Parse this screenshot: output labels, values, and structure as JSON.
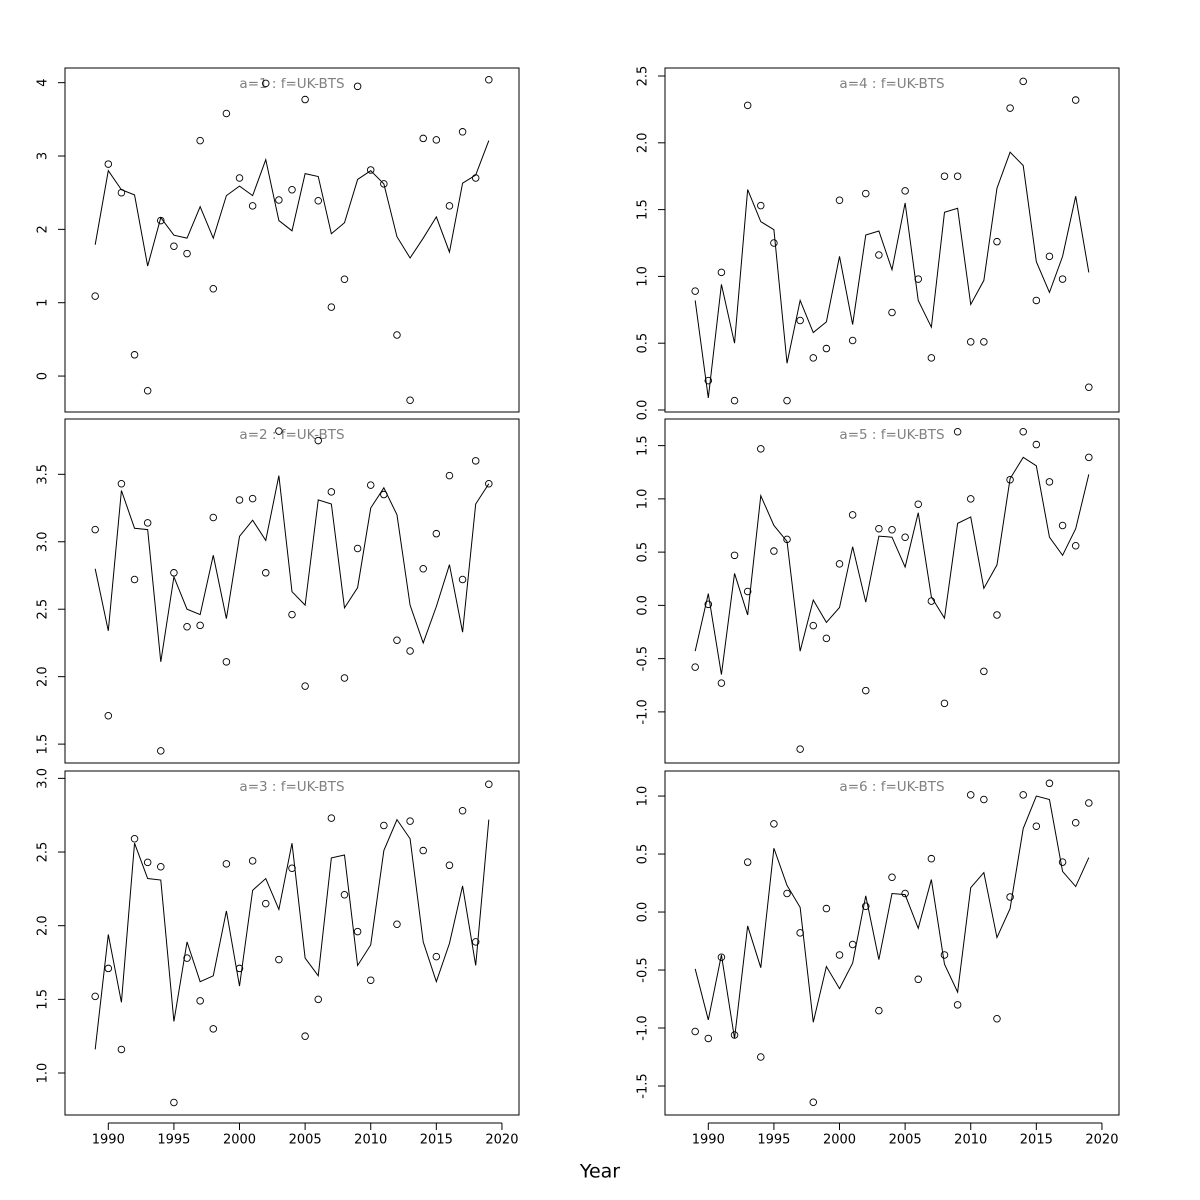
{
  "xlabel": "Year",
  "chart_data": [
    {
      "type": "line",
      "title": "a=1  :  f=UK-BTS",
      "x": [
        1989,
        1990,
        1991,
        1992,
        1993,
        1994,
        1995,
        1996,
        1997,
        1998,
        1999,
        2000,
        2001,
        2002,
        2003,
        2004,
        2005,
        2006,
        2007,
        2008,
        2009,
        2010,
        2011,
        2012,
        2013,
        2014,
        2015,
        2016,
        2017,
        2018,
        2019
      ],
      "xlim": [
        1986.7,
        2021.3
      ],
      "ylim": [
        -0.49,
        4.2
      ],
      "yticks": [
        0,
        1,
        2,
        3,
        4
      ],
      "series": [
        {
          "style": "points",
          "color": "#000000",
          "values": [
            1.09,
            2.89,
            2.5,
            0.29,
            -0.2,
            2.12,
            1.77,
            1.67,
            3.21,
            1.19,
            3.58,
            2.7,
            2.32,
            3.99,
            2.4,
            2.54,
            3.77,
            2.39,
            0.94,
            1.32,
            3.95,
            2.81,
            2.62,
            0.56,
            -0.33,
            3.24,
            3.22,
            2.32,
            3.33,
            2.7,
            4.04
          ]
        },
        {
          "style": "line",
          "color": "#000000",
          "values": [
            1.79,
            2.8,
            2.54,
            2.47,
            1.5,
            2.16,
            1.92,
            1.88,
            2.31,
            1.88,
            2.46,
            2.59,
            2.46,
            2.95,
            2.12,
            1.98,
            2.76,
            2.72,
            1.94,
            2.09,
            2.68,
            2.8,
            2.62,
            1.9,
            1.61,
            1.88,
            2.17,
            1.69,
            2.63,
            2.74,
            3.21
          ]
        }
      ]
    },
    {
      "type": "line",
      "title": "a=2  :  f=UK-BTS",
      "x": [
        1989,
        1990,
        1991,
        1992,
        1993,
        1994,
        1995,
        1996,
        1997,
        1998,
        1999,
        2000,
        2001,
        2002,
        2003,
        2004,
        2005,
        2006,
        2007,
        2008,
        2009,
        2010,
        2011,
        2012,
        2013,
        2014,
        2015,
        2016,
        2017,
        2018,
        2019
      ],
      "xlim": [
        1986.7,
        2021.3
      ],
      "ylim": [
        1.36,
        3.91
      ],
      "yticks": [
        1.5,
        {
          "value": 2,
          "label": "2.0"
        },
        2.5,
        {
          "value": 3,
          "label": "3.0"
        },
        3.5
      ],
      "series": [
        {
          "style": "points",
          "color": "#000000",
          "values": [
            3.09,
            1.71,
            3.43,
            2.72,
            3.14,
            1.45,
            2.77,
            2.37,
            2.38,
            3.18,
            2.11,
            3.31,
            3.32,
            2.77,
            3.82,
            2.46,
            1.93,
            3.75,
            3.37,
            1.99,
            2.95,
            3.42,
            3.35,
            2.27,
            2.19,
            2.8,
            3.06,
            3.49,
            2.72,
            3.6,
            3.43
          ]
        },
        {
          "style": "line",
          "color": "#000000",
          "values": [
            2.8,
            2.34,
            3.38,
            3.1,
            3.09,
            2.11,
            2.74,
            2.5,
            2.46,
            2.9,
            2.43,
            3.04,
            3.16,
            3.01,
            3.49,
            2.63,
            2.53,
            3.31,
            3.28,
            2.51,
            2.66,
            3.25,
            3.4,
            3.2,
            2.53,
            2.25,
            2.52,
            2.83,
            2.33,
            3.28,
            3.43
          ]
        }
      ]
    },
    {
      "type": "line",
      "title": "a=3  :  f=UK-BTS",
      "x": [
        1989,
        1990,
        1991,
        1992,
        1993,
        1994,
        1995,
        1996,
        1997,
        1998,
        1999,
        2000,
        2001,
        2002,
        2003,
        2004,
        2005,
        2006,
        2007,
        2008,
        2009,
        2010,
        2011,
        2012,
        2013,
        2014,
        2015,
        2016,
        2017,
        2018,
        2019
      ],
      "xlim": [
        1986.7,
        2021.3
      ],
      "ylim": [
        0.715,
        3.05
      ],
      "xticks": [
        1990,
        1995,
        2000,
        2005,
        2010,
        2015,
        2020
      ],
      "yticks": [
        {
          "value": 1,
          "label": "1.0"
        },
        1.5,
        {
          "value": 2,
          "label": "2.0"
        },
        2.5,
        {
          "value": 3,
          "label": "3.0"
        }
      ],
      "series": [
        {
          "style": "points",
          "color": "#000000",
          "values": [
            1.52,
            1.71,
            1.16,
            2.59,
            2.43,
            2.4,
            0.8,
            1.78,
            1.49,
            1.3,
            2.42,
            1.71,
            2.44,
            2.15,
            1.77,
            2.39,
            1.25,
            1.5,
            2.73,
            2.21,
            1.96,
            1.63,
            2.68,
            2.01,
            2.71,
            2.51,
            1.79,
            2.41,
            2.78,
            1.89,
            2.96
          ]
        },
        {
          "style": "line",
          "color": "#000000",
          "values": [
            1.16,
            1.94,
            1.48,
            2.56,
            2.32,
            2.31,
            1.35,
            1.89,
            1.62,
            1.66,
            2.1,
            1.59,
            2.24,
            2.32,
            2.11,
            2.56,
            1.78,
            1.66,
            2.46,
            2.48,
            1.73,
            1.87,
            2.51,
            2.72,
            2.59,
            1.89,
            1.62,
            1.88,
            2.27,
            1.73,
            2.72
          ]
        }
      ]
    },
    {
      "type": "line",
      "title": "a=4  :  f=UK-BTS",
      "x": [
        1989,
        1990,
        1991,
        1992,
        1993,
        1994,
        1995,
        1996,
        1997,
        1998,
        1999,
        2000,
        2001,
        2002,
        2003,
        2004,
        2005,
        2006,
        2007,
        2008,
        2009,
        2010,
        2011,
        2012,
        2013,
        2014,
        2015,
        2016,
        2017,
        2018,
        2019
      ],
      "xlim": [
        1986.7,
        2021.3
      ],
      "ylim": [
        -0.015,
        2.56
      ],
      "yticks": [
        {
          "value": 0,
          "label": "0.0"
        },
        0.5,
        {
          "value": 1,
          "label": "1.0"
        },
        1.5,
        {
          "value": 2,
          "label": "2.0"
        },
        2.5
      ],
      "series": [
        {
          "style": "points",
          "color": "#000000",
          "values": [
            0.89,
            0.22,
            1.03,
            0.07,
            2.28,
            1.53,
            1.25,
            0.07,
            0.67,
            0.39,
            0.46,
            1.57,
            0.52,
            1.62,
            1.16,
            0.73,
            1.64,
            0.98,
            0.39,
            1.75,
            1.75,
            0.51,
            0.51,
            1.26,
            2.26,
            2.46,
            0.82,
            1.15,
            0.98,
            2.32,
            0.17
          ]
        },
        {
          "style": "line",
          "color": "#000000",
          "values": [
            0.82,
            0.09,
            0.94,
            0.5,
            1.65,
            1.41,
            1.35,
            0.35,
            0.82,
            0.58,
            0.66,
            1.15,
            0.64,
            1.31,
            1.34,
            1.05,
            1.55,
            0.82,
            0.62,
            1.48,
            1.51,
            0.79,
            0.97,
            1.66,
            1.93,
            1.83,
            1.11,
            0.88,
            1.15,
            1.6,
            1.03
          ]
        }
      ]
    },
    {
      "type": "line",
      "title": "a=5  :  f=UK-BTS",
      "x": [
        1989,
        1990,
        1991,
        1992,
        1993,
        1994,
        1995,
        1996,
        1997,
        1998,
        1999,
        2000,
        2001,
        2002,
        2003,
        2004,
        2005,
        2006,
        2007,
        2008,
        2009,
        2010,
        2011,
        2012,
        2013,
        2014,
        2015,
        2016,
        2017,
        2018,
        2019
      ],
      "xlim": [
        1986.7,
        2021.3
      ],
      "ylim": [
        -1.48,
        1.75
      ],
      "yticks": [
        {
          "value": -1,
          "label": "-1.0"
        },
        -0.5,
        {
          "value": 0,
          "label": "0.0"
        },
        0.5,
        {
          "value": 1,
          "label": "1.0"
        },
        1.5
      ],
      "series": [
        {
          "style": "points",
          "color": "#000000",
          "values": [
            -0.58,
            0.01,
            -0.73,
            0.47,
            0.13,
            1.47,
            0.51,
            0.62,
            -1.35,
            -0.19,
            -0.31,
            0.39,
            0.85,
            -0.8,
            0.72,
            0.71,
            0.64,
            0.95,
            0.04,
            -0.92,
            1.63,
            1.0,
            -0.62,
            -0.09,
            1.18,
            1.63,
            1.51,
            1.16,
            0.75,
            0.56,
            1.39
          ]
        },
        {
          "style": "line",
          "color": "#000000",
          "values": [
            -0.43,
            0.11,
            -0.65,
            0.3,
            -0.09,
            1.03,
            0.75,
            0.6,
            -0.43,
            0.05,
            -0.16,
            -0.02,
            0.55,
            0.03,
            0.65,
            0.64,
            0.36,
            0.87,
            0.08,
            -0.12,
            0.77,
            0.83,
            0.16,
            0.38,
            1.19,
            1.39,
            1.31,
            0.64,
            0.47,
            0.72,
            1.23
          ]
        }
      ]
    },
    {
      "type": "line",
      "title": "a=6  :  f=UK-BTS",
      "x": [
        1989,
        1990,
        1991,
        1992,
        1993,
        1994,
        1995,
        1996,
        1997,
        1998,
        1999,
        2000,
        2001,
        2002,
        2003,
        2004,
        2005,
        2006,
        2007,
        2008,
        2009,
        2010,
        2011,
        2012,
        2013,
        2014,
        2015,
        2016,
        2017,
        2018,
        2019
      ],
      "xlim": [
        1986.7,
        2021.3
      ],
      "ylim": [
        -1.75,
        1.216
      ],
      "xticks": [
        1990,
        1995,
        2000,
        2005,
        2010,
        2015,
        2020
      ],
      "yticks": [
        -1.5,
        {
          "value": -1,
          "label": "-1.0"
        },
        -0.5,
        {
          "value": 0,
          "label": "0.0"
        },
        0.5,
        {
          "value": 1,
          "label": "1.0"
        }
      ],
      "series": [
        {
          "style": "points",
          "color": "#000000",
          "values": [
            -1.03,
            -1.09,
            -0.39,
            -1.06,
            0.43,
            -1.25,
            0.76,
            0.16,
            -0.18,
            -1.64,
            0.03,
            -0.37,
            -0.28,
            0.05,
            -0.85,
            0.3,
            0.16,
            -0.58,
            0.46,
            -0.37,
            -0.8,
            1.01,
            0.97,
            -0.92,
            0.13,
            1.01,
            0.74,
            1.11,
            0.43,
            0.77,
            0.94
          ]
        },
        {
          "style": "line",
          "color": "#000000",
          "values": [
            -0.49,
            -0.93,
            -0.37,
            -1.09,
            -0.12,
            -0.48,
            0.55,
            0.23,
            0.04,
            -0.95,
            -0.47,
            -0.66,
            -0.44,
            0.14,
            -0.41,
            0.16,
            0.15,
            -0.14,
            0.28,
            -0.45,
            -0.69,
            0.21,
            0.34,
            -0.22,
            0.03,
            0.72,
            1.0,
            0.97,
            0.35,
            0.22,
            0.47
          ]
        }
      ]
    }
  ]
}
